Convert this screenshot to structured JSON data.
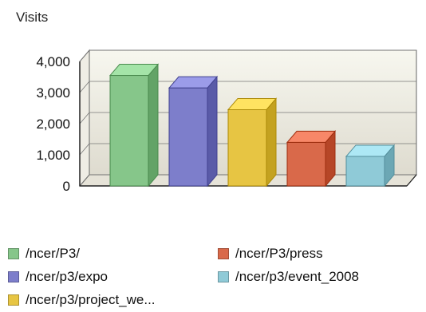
{
  "chart_data": {
    "type": "bar",
    "title": "Visits",
    "categories": [
      "/ncer/P3/",
      "/ncer/p3/expo",
      "/ncer/p3/project_we...",
      "/ncer/P3/press",
      "/ncer/p3/event_2008"
    ],
    "values": [
      3550,
      3150,
      2450,
      1400,
      950
    ],
    "ylim": [
      0,
      4000
    ],
    "yticks": [
      "4,000",
      "3,000",
      "2,000",
      "1,000",
      "0"
    ],
    "grid": true,
    "legend_placement": "bottom",
    "series_colors": [
      "#86c68a",
      "#7d7ecb",
      "#e7c543",
      "#d9694a",
      "#8fcad7"
    ]
  },
  "legend": {
    "items": [
      {
        "label": "/ncer/P3/",
        "color": "#86c68a"
      },
      {
        "label": "/ncer/P3/press",
        "color": "#d9694a"
      },
      {
        "label": "/ncer/p3/expo",
        "color": "#7d7ecb"
      },
      {
        "label": "/ncer/p3/event_2008",
        "color": "#8fcad7"
      },
      {
        "label": "/ncer/p3/project_we...",
        "color": "#e7c543"
      }
    ]
  }
}
